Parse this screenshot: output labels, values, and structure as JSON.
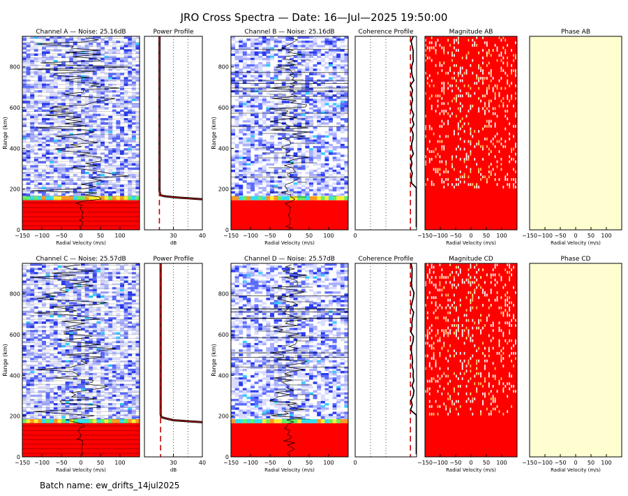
{
  "title": "JRO Cross Spectra — Date: 16—Jul—2025 19:50:00",
  "batch": "Batch name: ew_drifts_14jul2025",
  "chart_data": [
    {
      "type": "heatmap",
      "id": "chA",
      "title": "Channel A — Noise: 25.16dB",
      "xlabel": "Radial Velocity (m/s)",
      "ylabel": "Range (km)",
      "xlim": [
        -150,
        150
      ],
      "ylim": [
        0,
        950
      ],
      "xticks": [
        "−150",
        "−100",
        "−50",
        "0",
        "50",
        "100"
      ],
      "yticks": [
        "0",
        "200",
        "400",
        "600",
        "800"
      ]
    },
    {
      "type": "line",
      "id": "ppA",
      "title": "Power Profile",
      "xlabel": "dB",
      "xlim": [
        20,
        40
      ],
      "xticks": [
        "30",
        "40"
      ],
      "noise_db": 25.16,
      "profile": [
        [
          40,
          150
        ],
        [
          35,
          155
        ],
        [
          30,
          160
        ],
        [
          27,
          165
        ],
        [
          25.5,
          170
        ],
        [
          25.2,
          190
        ],
        [
          25.2,
          950
        ]
      ]
    },
    {
      "type": "heatmap",
      "id": "chB",
      "title": "Channel B — Noise: 25.16dB",
      "xlabel": "Radial Velocity (m/s)",
      "ylabel": "Range (km)",
      "xlim": [
        -150,
        150
      ],
      "ylim": [
        0,
        950
      ],
      "xticks": [
        "−150",
        "−100",
        "−50",
        "0",
        "50",
        "100"
      ],
      "yticks": [
        "0",
        "200",
        "400",
        "600",
        "800"
      ]
    },
    {
      "type": "line",
      "id": "cohAB",
      "title": "Coherence Profile",
      "xlabel": "",
      "xlim": [
        0,
        1
      ],
      "xticks": [
        "0"
      ],
      "threshold": 0.9
    },
    {
      "type": "heatmap",
      "id": "magAB",
      "title": "Magnitude AB",
      "xlabel": "Radial Velocity (m/s)",
      "xlim": [
        -150,
        150
      ],
      "xticks": [
        "−150",
        "−100",
        "−50",
        "0",
        "50",
        "100"
      ]
    },
    {
      "type": "heatmap",
      "id": "phAB",
      "title": "Phase AB",
      "xlabel": "Radial Velocity (m/s)",
      "xlim": [
        -150,
        150
      ],
      "xticks": [
        "−150",
        "−100",
        "−50",
        "0",
        "50",
        "100"
      ]
    },
    {
      "type": "heatmap",
      "id": "chC",
      "title": "Channel C — Noise: 25.57dB",
      "xlabel": "Radial Velocity (m/s)",
      "ylabel": "Range (km)",
      "xlim": [
        -150,
        150
      ],
      "ylim": [
        0,
        950
      ],
      "xticks": [
        "−150",
        "−100",
        "−50",
        "0",
        "50",
        "100"
      ],
      "yticks": [
        "0",
        "200",
        "400",
        "600",
        "800"
      ]
    },
    {
      "type": "line",
      "id": "ppC",
      "title": "Power Profile",
      "xlabel": "dB",
      "xlim": [
        20,
        40
      ],
      "xticks": [
        "30",
        "40"
      ],
      "noise_db": 25.57,
      "profile": [
        [
          40,
          170
        ],
        [
          35,
          175
        ],
        [
          30,
          180
        ],
        [
          27,
          190
        ],
        [
          25.8,
          195
        ],
        [
          25.6,
          210
        ],
        [
          25.6,
          950
        ]
      ]
    },
    {
      "type": "heatmap",
      "id": "chD",
      "title": "Channel D — Noise: 25.57dB",
      "xlabel": "Radial Velocity (m/s)",
      "ylabel": "Range (km)",
      "xlim": [
        -150,
        150
      ],
      "ylim": [
        0,
        950
      ],
      "xticks": [
        "−150",
        "−100",
        "−50",
        "0",
        "50",
        "100"
      ],
      "yticks": [
        "0",
        "200",
        "400",
        "600",
        "800"
      ]
    },
    {
      "type": "line",
      "id": "cohCD",
      "title": "Coherence Profile",
      "xlabel": "",
      "xlim": [
        0,
        1
      ],
      "xticks": [
        "0"
      ],
      "threshold": 0.9
    },
    {
      "type": "heatmap",
      "id": "magCD",
      "title": "Magnitude CD",
      "xlabel": "Radial Velocity (m/s)",
      "xlim": [
        -150,
        150
      ],
      "xticks": [
        "−150",
        "−100",
        "−50",
        "0",
        "50",
        "100"
      ]
    },
    {
      "type": "heatmap",
      "id": "phCD",
      "title": "Phase CD",
      "xlabel": "Radial Velocity (m/s)",
      "xlim": [
        -150,
        150
      ],
      "xticks": [
        "−150",
        "−100",
        "−50",
        "0",
        "50",
        "100"
      ]
    }
  ]
}
